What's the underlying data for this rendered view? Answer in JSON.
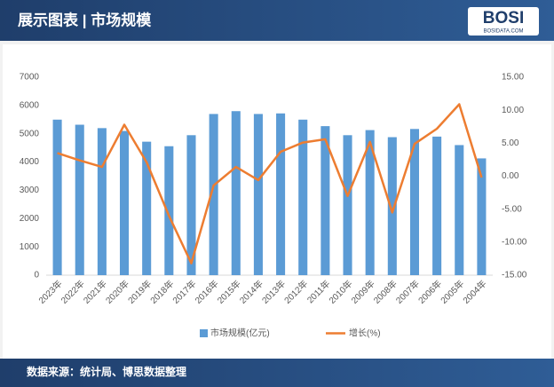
{
  "chart_data": {
    "type": "bar_line",
    "title": "展示图表 | 市场规模",
    "logo": "BOSI",
    "logo_sub": "BOSIDATA.COM",
    "source": "数据来源：统计局、博思数据整理",
    "categories": [
      "2023年",
      "2022年",
      "2021年",
      "2020年",
      "2019年",
      "2018年",
      "2017年",
      "2016年",
      "2015年",
      "2014年",
      "2013年",
      "2012年",
      "2011年",
      "2010年",
      "2009年",
      "2008年",
      "2007年",
      "2006年",
      "2005年",
      "2004年"
    ],
    "series": [
      {
        "name": "市场规模(亿元)",
        "color": "#5b9bd5",
        "type": "bar",
        "values": [
          5500,
          5320,
          5200,
          5100,
          4720,
          4560,
          4950,
          5700,
          5800,
          5700,
          5720,
          5500,
          5270,
          4950,
          5130,
          4880,
          5170,
          4900,
          4600,
          4130
        ]
      },
      {
        "name": "增长(%)",
        "color": "#ed7d31",
        "type": "line",
        "axis": "y2",
        "values": [
          3.5,
          2.4,
          1.4,
          7.8,
          2.1,
          -6.0,
          -13.2,
          -1.4,
          1.4,
          -0.6,
          3.7,
          5.1,
          5.6,
          -3.0,
          5.2,
          -5.5,
          4.9,
          7.2,
          10.9,
          -0.2
        ]
      }
    ],
    "ylim": [
      0,
      7000
    ],
    "yticks": [
      0,
      1000,
      2000,
      3000,
      4000,
      5000,
      6000,
      7000
    ],
    "y2lim": [
      -15,
      15
    ],
    "y2ticks": [
      {
        "value": -15,
        "label": "-15.00"
      },
      {
        "value": -10,
        "label": "-10.00"
      },
      {
        "value": -5,
        "label": "-5.00"
      },
      {
        "value": 0,
        "label": "0.00"
      },
      {
        "value": 5,
        "label": "5.00"
      },
      {
        "value": 10,
        "label": "10.00"
      },
      {
        "value": 15,
        "label": "15.00"
      }
    ],
    "grid": false,
    "legend": "bottom"
  }
}
